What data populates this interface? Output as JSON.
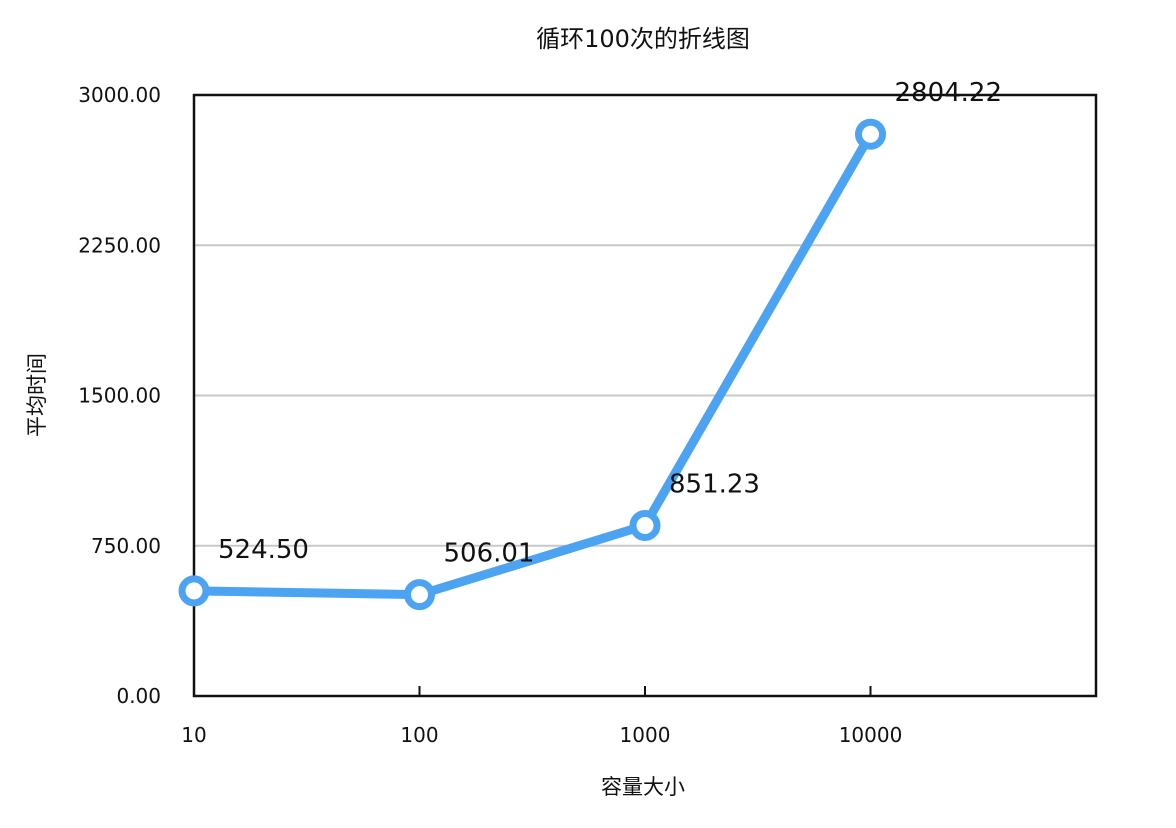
{
  "chart_data": {
    "type": "line",
    "title": "循环100次的折线图",
    "xlabel": "容量大小",
    "ylabel": "平均时间",
    "categories": [
      "10",
      "100",
      "1000",
      "10000"
    ],
    "series": [
      {
        "name": "",
        "values": [
          524.5,
          506.01,
          851.23,
          2804.22
        ],
        "color": "#4BA3F2"
      }
    ],
    "data_labels": [
      "524.50",
      "506.01",
      "851.23",
      "2804.22"
    ],
    "ylim": [
      0,
      3000
    ],
    "yticks": [
      "0.00",
      "750.00",
      "1500.00",
      "2250.00",
      "3000.00"
    ],
    "grid": true,
    "legend": "none",
    "colors": {
      "line": "#4BA3F2",
      "grid": "#C8C8C8",
      "axis": "#111111"
    }
  }
}
